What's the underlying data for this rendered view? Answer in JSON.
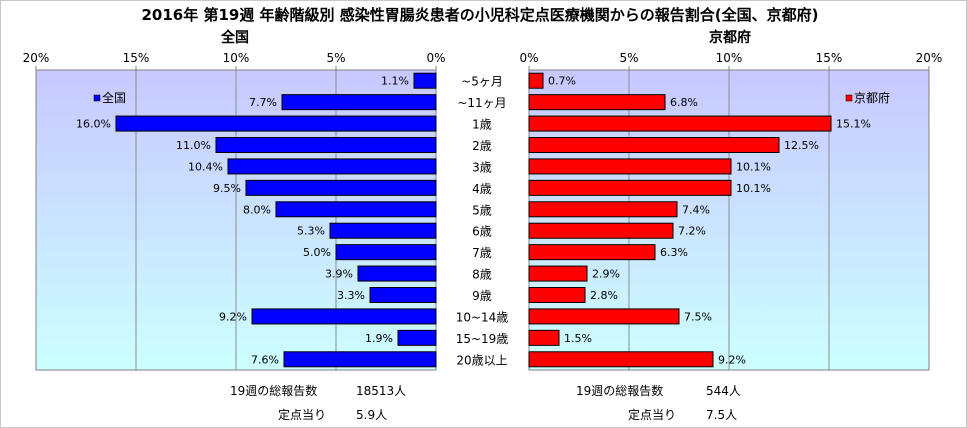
{
  "title": "2016年 第19週 年齢階級別 感染性胃腸炎患者の小児科定点医療機関からの報告割合(全国、京都府)",
  "chart_data": [
    {
      "type": "bar",
      "title": "全国",
      "orientation": "horizontal-reversed",
      "categories": [
        "~5ヶ月",
        "~11ヶ月",
        "1歳",
        "2歳",
        "3歳",
        "4歳",
        "5歳",
        "6歳",
        "7歳",
        "8歳",
        "9歳",
        "10~14歳",
        "15~19歳",
        "20歳以上"
      ],
      "series": [
        {
          "name": "全国",
          "values": [
            1.1,
            7.7,
            16.0,
            11.0,
            10.4,
            9.5,
            8.0,
            5.3,
            5.0,
            3.9,
            3.3,
            9.2,
            1.9,
            7.6
          ],
          "color": "#0000ff"
        }
      ],
      "data_labels": [
        "1.1%",
        "7.7%",
        "16.0%",
        "11.0%",
        "10.4%",
        "9.5%",
        "8.0%",
        "5.3%",
        "5.0%",
        "3.9%",
        "3.3%",
        "9.2%",
        "1.9%",
        "7.6%"
      ],
      "xlim": [
        0,
        20
      ],
      "xticks": [
        20,
        15,
        10,
        5,
        0
      ],
      "tick_labels": [
        "20%",
        "15%",
        "10%",
        "5%",
        "0%"
      ],
      "legend": "top-left",
      "grid": true
    },
    {
      "type": "bar",
      "title": "京都府",
      "orientation": "horizontal",
      "categories": [
        "~5ヶ月",
        "~11ヶ月",
        "1歳",
        "2歳",
        "3歳",
        "4歳",
        "5歳",
        "6歳",
        "7歳",
        "8歳",
        "9歳",
        "10~14歳",
        "15~19歳",
        "20歳以上"
      ],
      "series": [
        {
          "name": "京都府",
          "values": [
            0.7,
            6.8,
            15.1,
            12.5,
            10.1,
            10.1,
            7.4,
            7.2,
            6.3,
            2.9,
            2.8,
            7.5,
            1.5,
            9.2
          ],
          "color": "#ff0000"
        }
      ],
      "data_labels": [
        "0.7%",
        "6.8%",
        "15.1%",
        "12.5%",
        "10.1%",
        "10.1%",
        "7.4%",
        "7.2%",
        "6.3%",
        "2.9%",
        "2.8%",
        "7.5%",
        "1.5%",
        "9.2%"
      ],
      "xlim": [
        0,
        20
      ],
      "xticks": [
        0,
        5,
        10,
        15,
        20
      ],
      "tick_labels": [
        "0%",
        "5%",
        "10%",
        "15%",
        "20%"
      ],
      "legend": "top-right",
      "grid": true
    }
  ],
  "footer": {
    "national_total_label": "19週の総報告数",
    "national_total_value": "18513人",
    "national_per_label": "定点当り",
    "national_per_value": "5.9人",
    "kyoto_total_label": "19週の総報告数",
    "kyoto_total_value": "544人",
    "kyoto_per_label": "定点当り",
    "kyoto_per_value": "7.5人"
  },
  "colors": {
    "national_bar": "#0000ff",
    "kyoto_bar": "#ff0000",
    "plot_bg_top": "#c8c8ff",
    "plot_bg_bottom": "#ccffff"
  }
}
